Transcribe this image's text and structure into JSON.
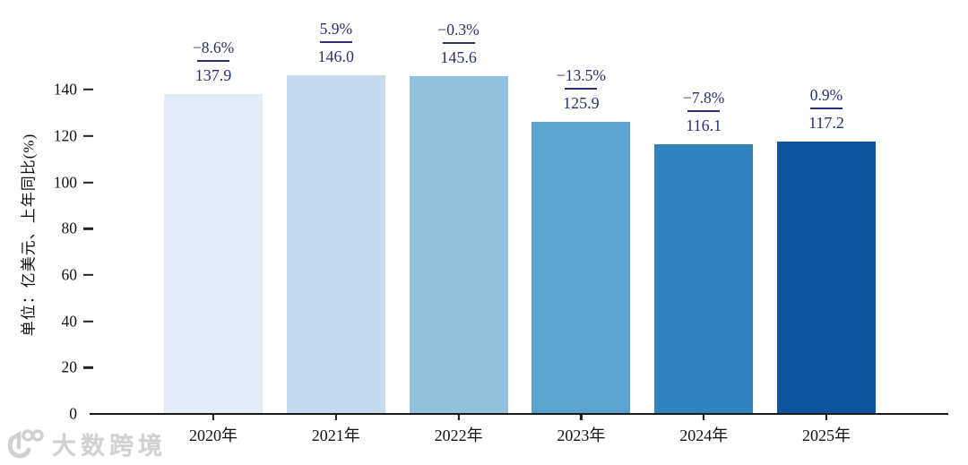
{
  "chart_data": {
    "type": "bar",
    "title": "",
    "categories": [
      "2020年",
      "2021年",
      "2022年",
      "2023年",
      "2024年",
      "2025年"
    ],
    "values": [
      137.9,
      146.0,
      145.6,
      125.9,
      116.1,
      117.2
    ],
    "value_labels": [
      "137.9",
      "146.0",
      "145.6",
      "125.9",
      "116.1",
      "117.2"
    ],
    "growth_labels": [
      "−8.6%",
      "5.9%",
      "−0.3%",
      "−13.5%",
      "−7.8%",
      "0.9%"
    ],
    "xlabel": "",
    "ylabel": "单位：亿美元、上年同比(%)",
    "yticks": [
      0,
      20,
      40,
      60,
      80,
      100,
      120,
      140
    ],
    "ylim": [
      0,
      150
    ],
    "grid": false,
    "legend_position": "none",
    "bar_colors": [
      "#e3edf8",
      "#c7daee",
      "#94c1de",
      "#5ba2cf",
      "#3182bd",
      "#0f559e"
    ],
    "annotation_color": "#2b3170",
    "axis_color": "#1a1a1a"
  },
  "watermark": {
    "text": "大数跨境",
    "logo": "100-logo"
  }
}
